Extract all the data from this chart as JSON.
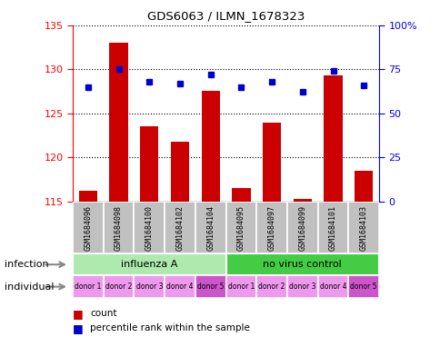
{
  "title": "GDS6063 / ILMN_1678323",
  "samples": [
    "GSM1684096",
    "GSM1684098",
    "GSM1684100",
    "GSM1684102",
    "GSM1684104",
    "GSM1684095",
    "GSM1684097",
    "GSM1684099",
    "GSM1684101",
    "GSM1684103"
  ],
  "counts": [
    116.2,
    133.0,
    123.5,
    121.8,
    127.5,
    116.5,
    124.0,
    115.3,
    129.3,
    118.5
  ],
  "percentiles": [
    65,
    75,
    68,
    67,
    72,
    65,
    68,
    62,
    74,
    66
  ],
  "ylim_left": [
    115,
    135
  ],
  "ylim_right": [
    0,
    100
  ],
  "yticks_left": [
    115,
    120,
    125,
    130,
    135
  ],
  "yticks_right": [
    0,
    25,
    50,
    75,
    100
  ],
  "bar_color": "#cc0000",
  "dot_color": "#0000cc",
  "infection_groups": [
    {
      "label": "influenza A",
      "start": 0,
      "end": 5,
      "color": "#aeeaae"
    },
    {
      "label": "no virus control",
      "start": 5,
      "end": 10,
      "color": "#44cc44"
    }
  ],
  "individual_labels": [
    "donor 1",
    "donor 2",
    "donor 3",
    "donor 4",
    "donor 5",
    "donor 1",
    "donor 2",
    "donor 3",
    "donor 4",
    "donor 5"
  ],
  "individual_colors": [
    "#ee99ee",
    "#ee99ee",
    "#ee99ee",
    "#ee99ee",
    "#cc55cc",
    "#ee99ee",
    "#ee99ee",
    "#ee99ee",
    "#ee99ee",
    "#cc55cc"
  ],
  "bg_color": "#ffffff",
  "sample_bg_color": "#c0c0c0"
}
